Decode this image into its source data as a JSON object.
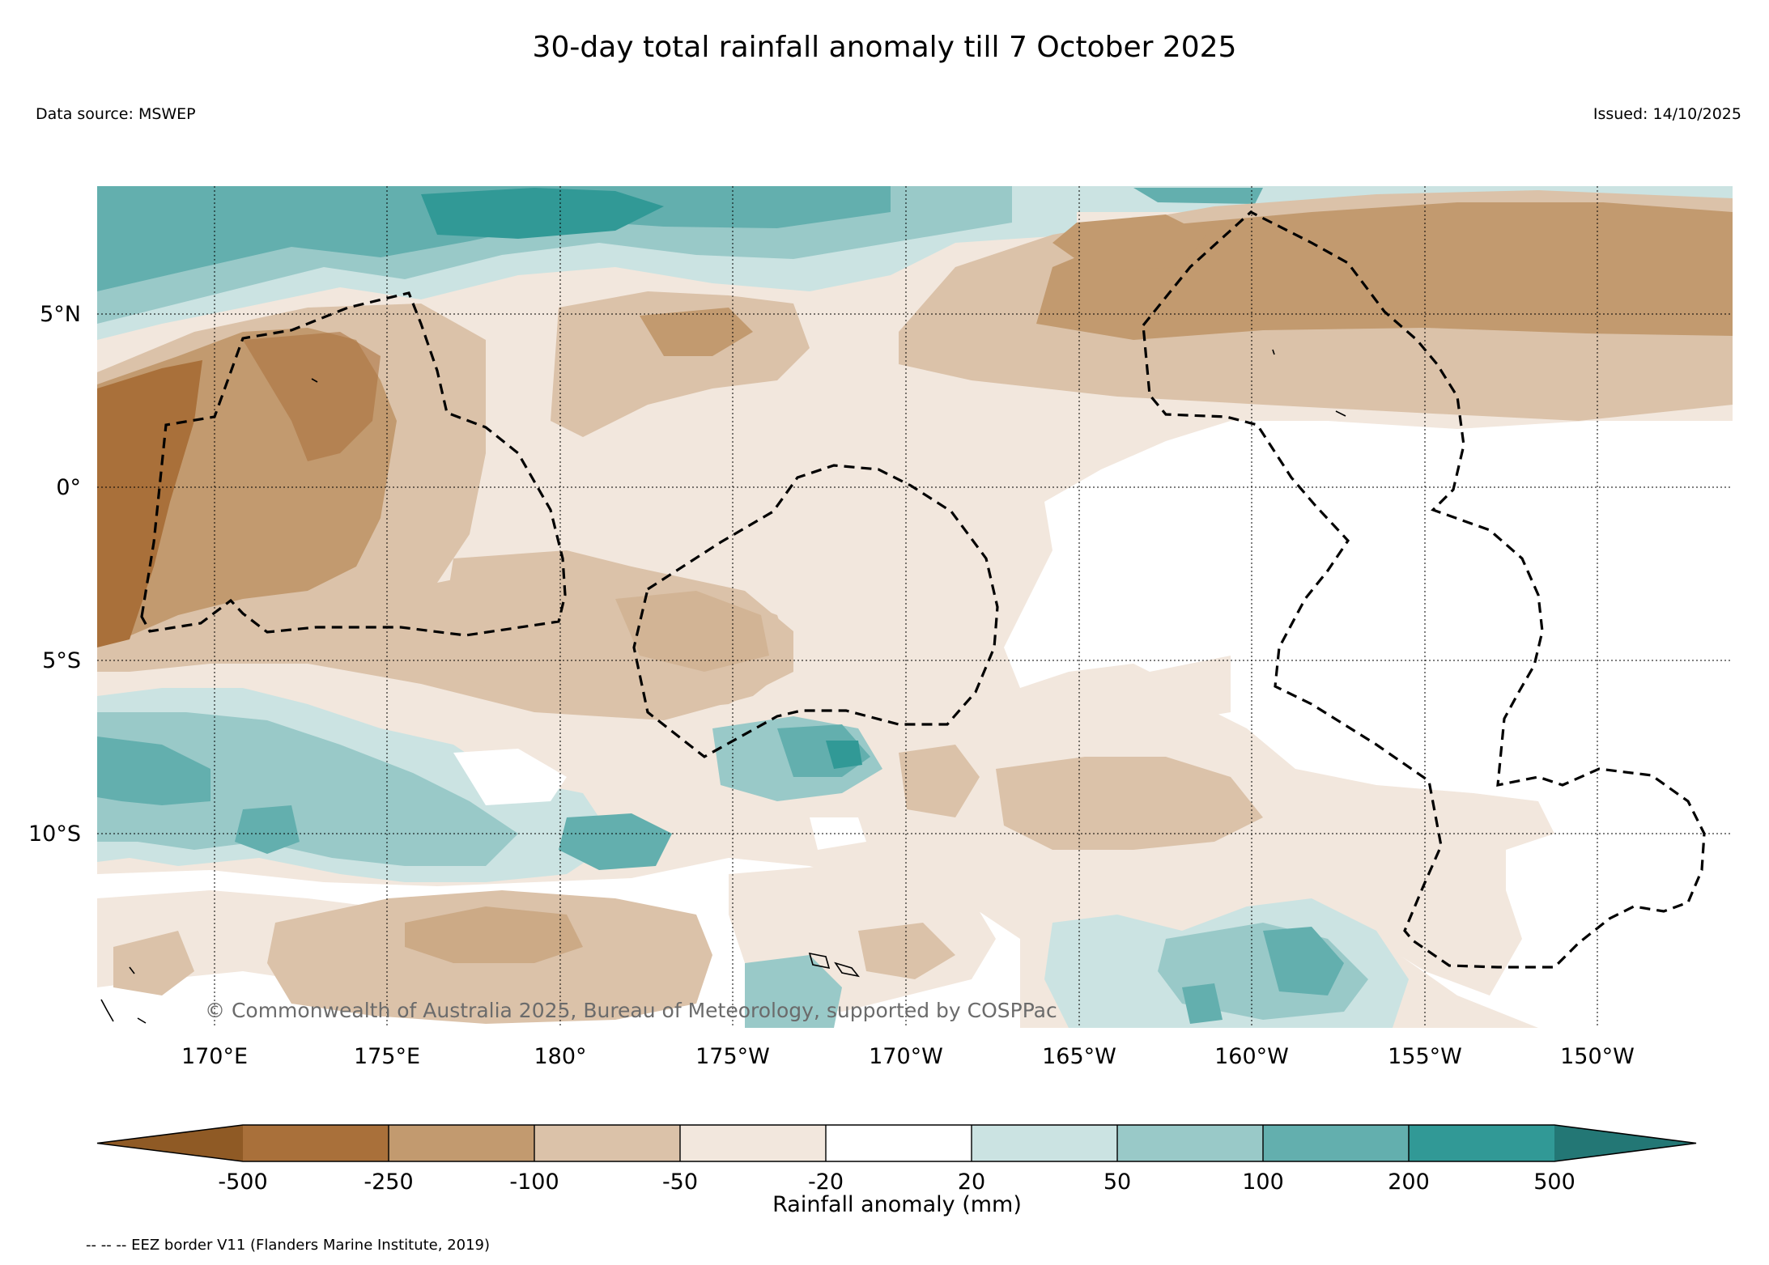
{
  "header": {
    "title": "30-day total rainfall anomaly till 7 October 2025",
    "data_source": "Data source: MSWEP",
    "issued": "Issued: 14/10/2025"
  },
  "map": {
    "lat_labels": [
      "5°N",
      "0°",
      "5°S",
      "10°S"
    ],
    "lon_labels": [
      "170°E",
      "175°E",
      "180°",
      "175°W",
      "170°W",
      "165°W",
      "160°W",
      "155°W",
      "150°W"
    ],
    "copyright": "© Commonwealth of Australia 2025, Bureau of Meteorology, supported by COSPPac"
  },
  "colorbar": {
    "label": "Rainfall anomaly (mm)",
    "ticks": [
      "-500",
      "-250",
      "-100",
      "-50",
      "-20",
      "20",
      "50",
      "100",
      "200",
      "500"
    ],
    "colors": [
      "#8f5a25",
      "#a9703a",
      "#c29a6f",
      "#dbc2a9",
      "#f2e7dd",
      "#ffffff",
      "#cbe3e2",
      "#99c9c8",
      "#63afae",
      "#319996",
      "#237775"
    ]
  },
  "legend": {
    "eez": "-- -- -- EEZ border V11 (Flanders Marine Institute, 2019)"
  }
}
